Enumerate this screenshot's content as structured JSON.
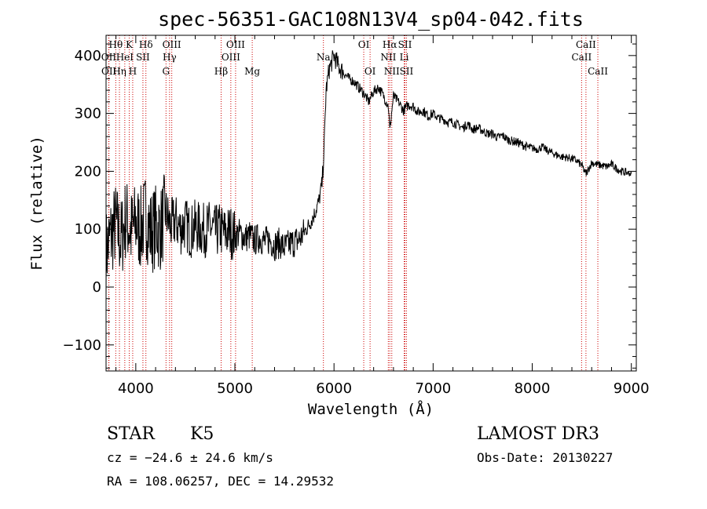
{
  "chart_data": {
    "type": "line",
    "title": "spec-56351-GAC108N13V4_sp04-042.fits",
    "xlabel": "Wavelength (Å)",
    "ylabel": "Flux (relative)",
    "xlim": [
      3700,
      9050
    ],
    "ylim": [
      -145,
      435
    ],
    "xticks": [
      4000,
      5000,
      6000,
      7000,
      8000,
      9000
    ],
    "xtick_labels": [
      "4000",
      "5000",
      "6000",
      "7000",
      "8000",
      "9000"
    ],
    "yticks": [
      -100,
      0,
      100,
      200,
      300,
      400
    ],
    "ytick_labels": [
      "−100",
      "0",
      "100",
      "200",
      "300",
      "400"
    ],
    "series": [
      {
        "name": "spectrum",
        "color": "#000000",
        "x": [
          3700,
          3750,
          3800,
          3850,
          3900,
          3950,
          4000,
          4050,
          4100,
          4150,
          4200,
          4250,
          4300,
          4350,
          4400,
          4450,
          4500,
          4550,
          4600,
          4650,
          4700,
          4750,
          4800,
          4850,
          4900,
          4950,
          5000,
          5050,
          5100,
          5150,
          5200,
          5250,
          5300,
          5350,
          5400,
          5450,
          5500,
          5550,
          5600,
          5650,
          5700,
          5750,
          5800,
          5850,
          5880,
          5900,
          5920,
          5950,
          6000,
          6050,
          6100,
          6150,
          6200,
          6250,
          6300,
          6350,
          6400,
          6450,
          6500,
          6550,
          6563,
          6580,
          6600,
          6650,
          6700,
          6750,
          6800,
          6850,
          6900,
          6950,
          7000,
          7050,
          7100,
          7150,
          7200,
          7250,
          7300,
          7350,
          7400,
          7450,
          7500,
          7550,
          7600,
          7650,
          7700,
          7750,
          7800,
          7850,
          7900,
          7950,
          8000,
          8050,
          8100,
          8150,
          8200,
          8250,
          8300,
          8350,
          8400,
          8450,
          8500,
          8542,
          8600,
          8650,
          8700,
          8750,
          8800,
          8850,
          8900,
          8950,
          9000
        ],
        "y": [
          60,
          90,
          110,
          80,
          120,
          95,
          110,
          100,
          125,
          95,
          105,
          100,
          130,
          105,
          115,
          100,
          110,
          95,
          105,
          100,
          98,
          104,
          95,
          100,
          92,
          97,
          88,
          93,
          85,
          89,
          80,
          86,
          78,
          82,
          72,
          76,
          68,
          74,
          78,
          82,
          95,
          108,
          125,
          150,
          180,
          240,
          340,
          375,
          400,
          380,
          370,
          360,
          355,
          345,
          335,
          320,
          338,
          345,
          330,
          312,
          270,
          300,
          330,
          320,
          305,
          315,
          312,
          302,
          305,
          295,
          300,
          292,
          290,
          285,
          285,
          280,
          275,
          282,
          272,
          275,
          270,
          265,
          265,
          258,
          262,
          255,
          252,
          250,
          246,
          242,
          240,
          238,
          242,
          236,
          232,
          228,
          225,
          224,
          222,
          218,
          210,
          195,
          215,
          212,
          210,
          208,
          212,
          205,
          200,
          198,
          195
        ]
      }
    ],
    "line_markers": [
      {
        "label": "Hθ",
        "wavelength": 3798,
        "row": 0
      },
      {
        "label": "OII",
        "wavelength": 3727,
        "row": 1
      },
      {
        "label": "OII",
        "wavelength": 3729,
        "row": 2
      },
      {
        "label": "K",
        "wavelength": 3934,
        "row": 0
      },
      {
        "label": "HeI",
        "wavelength": 3889,
        "row": 1
      },
      {
        "label": "Hη",
        "wavelength": 3835,
        "row": 2
      },
      {
        "label": "Hδ",
        "wavelength": 4102,
        "row": 0
      },
      {
        "label": "SII",
        "wavelength": 4072,
        "row": 1
      },
      {
        "label": "H",
        "wavelength": 3969,
        "row": 2
      },
      {
        "label": "OIII",
        "wavelength": 4363,
        "row": 0
      },
      {
        "label": "Hγ",
        "wavelength": 4341,
        "row": 1
      },
      {
        "label": "G",
        "wavelength": 4305,
        "row": 2
      },
      {
        "label": "OIII",
        "wavelength": 5007,
        "row": 0
      },
      {
        "label": "OIII",
        "wavelength": 4959,
        "row": 1
      },
      {
        "label": "Hβ",
        "wavelength": 4861,
        "row": 2
      },
      {
        "label": "Mg",
        "wavelength": 5175,
        "row": 2
      },
      {
        "label": "Na",
        "wavelength": 5893,
        "row": 1
      },
      {
        "label": "OI",
        "wavelength": 6300,
        "row": 0
      },
      {
        "label": "OI",
        "wavelength": 6364,
        "row": 2
      },
      {
        "label": "Hα",
        "wavelength": 6563,
        "row": 0
      },
      {
        "label": "SII",
        "wavelength": 6716,
        "row": 0
      },
      {
        "label": "NII",
        "wavelength": 6548,
        "row": 1
      },
      {
        "label": "Li",
        "wavelength": 6708,
        "row": 1
      },
      {
        "label": "NII",
        "wavelength": 6583,
        "row": 2
      },
      {
        "label": "SII",
        "wavelength": 6731,
        "row": 2
      },
      {
        "label": "CaII",
        "wavelength": 8542,
        "row": 0
      },
      {
        "label": "CaII",
        "wavelength": 8498,
        "row": 1
      },
      {
        "label": "CaII",
        "wavelength": 8662,
        "row": 2
      }
    ]
  },
  "info": {
    "object_class": "STAR",
    "subclass": "K5",
    "redshift": "cz = −24.6 ± 24.6 km/s",
    "coords": "RA = 108.06257, DEC =  14.29532",
    "survey": "LAMOST DR3",
    "obs_date": "Obs-Date: 20130227"
  }
}
